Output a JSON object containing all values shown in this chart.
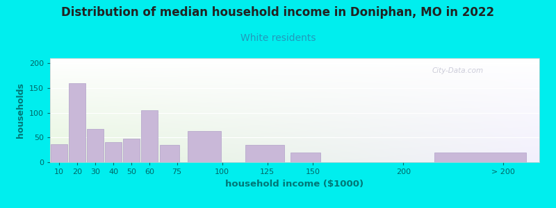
{
  "title": "Distribution of median household income in Doniphan, MO in 2022",
  "subtitle": "White residents",
  "xlabel": "household income ($1000)",
  "ylabel": "households",
  "background_outer": "#00EEEE",
  "bar_color": "#c9b8d8",
  "bar_edge_color": "#b0a0c8",
  "title_fontsize": 12,
  "subtitle_fontsize": 10,
  "subtitle_color": "#2299bb",
  "ylabel_color": "#007777",
  "xlabel_color": "#007777",
  "tick_color": "#006666",
  "tick_fontsize": 8,
  "categories": [
    "10",
    "20",
    "30",
    "40",
    "50",
    "60",
    "75",
    "100",
    "125",
    "150",
    "200",
    "> 200"
  ],
  "bar_lefts": [
    5,
    15,
    25,
    35,
    45,
    55,
    65,
    80,
    112,
    137,
    162,
    215
  ],
  "bar_widths": [
    10,
    10,
    10,
    10,
    10,
    10,
    12,
    20,
    23,
    18,
    25,
    55
  ],
  "values": [
    37,
    160,
    67,
    40,
    48,
    105,
    35,
    63,
    35,
    20,
    0,
    20
  ],
  "xtick_positions": [
    10,
    20,
    30,
    40,
    50,
    60,
    75,
    100,
    125,
    150,
    200
  ],
  "xtick_last_pos": 255,
  "xtick_last_label": "> 200",
  "ylim": [
    0,
    210
  ],
  "yticks": [
    0,
    50,
    100,
    150,
    200
  ],
  "watermark": "City-Data.com"
}
